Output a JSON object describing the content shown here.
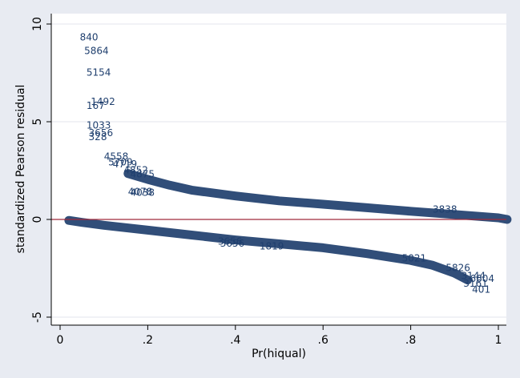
{
  "chart_data": {
    "type": "scatter",
    "title": "",
    "xlabel": "Pr(hiqual)",
    "ylabel": "standardized Pearson residual",
    "xlim": [
      0,
      1
    ],
    "ylim": [
      -5,
      10
    ],
    "x_ticks": [
      0,
      0.2,
      0.4,
      0.6,
      0.8,
      1
    ],
    "x_tick_labels": [
      "0",
      ".2",
      ".4",
      ".6",
      ".8",
      "1"
    ],
    "y_ticks": [
      -5,
      0,
      5,
      10
    ],
    "y_tick_labels": [
      "-5",
      "0",
      "5",
      "10"
    ],
    "grid": "horizontal",
    "reference_line": {
      "y": 0,
      "color": "#a02a3c"
    },
    "marker_color": "#1f3f6e",
    "series": [
      {
        "marker": "observation number labels",
        "points": [
          {
            "x": 0.045,
            "y": 9.3,
            "label": "840"
          },
          {
            "x": 0.055,
            "y": 8.6,
            "label": "5864"
          },
          {
            "x": 0.06,
            "y": 7.5,
            "label": "5154"
          },
          {
            "x": 0.07,
            "y": 6.0,
            "label": "1492"
          },
          {
            "x": 0.06,
            "y": 5.8,
            "label": "167"
          },
          {
            "x": 0.06,
            "y": 4.8,
            "label": "1033"
          },
          {
            "x": 0.065,
            "y": 4.4,
            "label": "3656"
          },
          {
            "x": 0.065,
            "y": 4.2,
            "label": "328"
          },
          {
            "x": 0.1,
            "y": 3.2,
            "label": "4558"
          },
          {
            "x": 0.11,
            "y": 2.9,
            "label": "5709"
          },
          {
            "x": 0.12,
            "y": 2.8,
            "label": "4719"
          },
          {
            "x": 0.145,
            "y": 2.5,
            "label": "4852"
          },
          {
            "x": 0.16,
            "y": 2.3,
            "label": "4875"
          },
          {
            "x": 0.155,
            "y": 1.4,
            "label": "4078"
          },
          {
            "x": 0.16,
            "y": 1.35,
            "label": "4038"
          },
          {
            "x": 0.36,
            "y": -1.15,
            "label": "3656"
          },
          {
            "x": 0.365,
            "y": -1.25,
            "label": "3656"
          },
          {
            "x": 0.455,
            "y": -1.4,
            "label": "1819"
          },
          {
            "x": 0.915,
            "y": -2.9,
            "label": "3144"
          },
          {
            "x": 0.935,
            "y": -3.05,
            "label": "6604"
          },
          {
            "x": 0.92,
            "y": -3.3,
            "label": "3161"
          },
          {
            "x": 0.94,
            "y": -3.6,
            "label": "401"
          },
          {
            "x": 0.88,
            "y": -2.5,
            "label": "5826"
          },
          {
            "x": 0.78,
            "y": -2.0,
            "label": "5021"
          },
          {
            "x": 0.85,
            "y": 0.5,
            "label": "3838"
          }
        ]
      }
    ]
  }
}
